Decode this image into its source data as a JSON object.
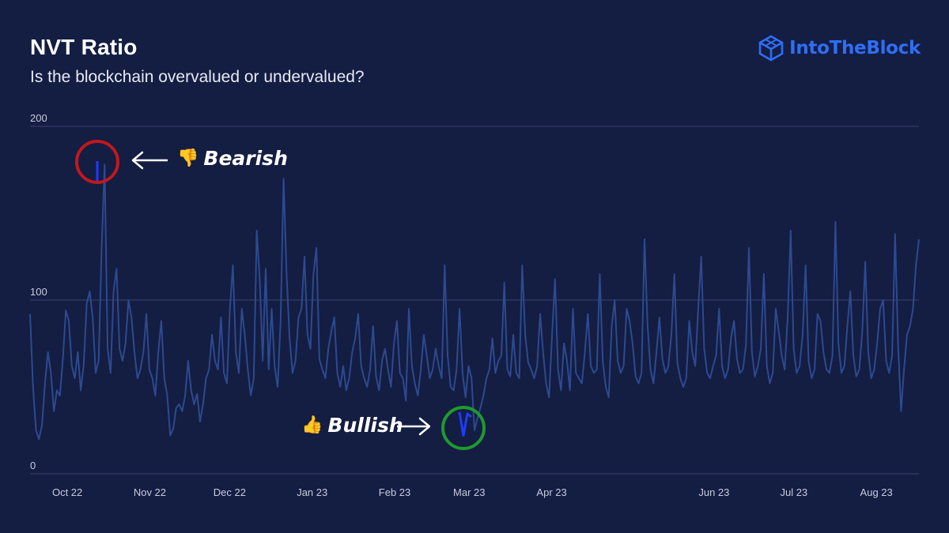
{
  "header": {
    "title": "NVT Ratio",
    "subtitle": "Is the blockchain overvalued or undervalued?"
  },
  "brand": {
    "name": "IntoTheBlock",
    "color": "#2f6ef5"
  },
  "annotations": {
    "bearish": {
      "label": "Bearish",
      "icon": "thumbs-down-icon",
      "ring_color": "#c0181f"
    },
    "bullish": {
      "label": "Bullish",
      "icon": "thumbs-up-icon",
      "ring_color": "#1f9a2e"
    }
  },
  "colors": {
    "background": "#141d42",
    "line": "#2c4a90",
    "highlight_line": "#1e3cff",
    "grid": "#3b4470",
    "text": "#ffffff",
    "tick_text": "#c9cde0"
  },
  "chart_data": {
    "type": "line",
    "title": "NVT Ratio",
    "subtitle": "Is the blockchain overvalued or undervalued?",
    "ylim": [
      0,
      200
    ],
    "yticks": [
      "0",
      "100",
      "200"
    ],
    "xlabels": [
      "Oct 22",
      "Nov 22",
      "Dec 22",
      "Jan 23",
      "Feb 23",
      "Mar 23",
      "Apr 23",
      "Jun 23",
      "Jul 23",
      "Aug 23"
    ],
    "x_start": "2022-10-01",
    "x_end": "2023-08-31",
    "grid": true,
    "series": [
      {
        "values": [
          92,
          50,
          25,
          20,
          28,
          52,
          70,
          58,
          36,
          48,
          45,
          66,
          94,
          88,
          62,
          55,
          70,
          48,
          63,
          98,
          105,
          90,
          58,
          65,
          130,
          178,
          72,
          58,
          105,
          118,
          72,
          65,
          75,
          100,
          90,
          70,
          55,
          60,
          70,
          92,
          60,
          55,
          45,
          70,
          88,
          55,
          45,
          22,
          26,
          38,
          40,
          36,
          45,
          65,
          48,
          40,
          46,
          30,
          40,
          55,
          60,
          80,
          65,
          60,
          90,
          58,
          52,
          95,
          120,
          70,
          58,
          95,
          80,
          60,
          45,
          55,
          140,
          112,
          65,
          118,
          60,
          95,
          62,
          50,
          88,
          170,
          115,
          78,
          58,
          65,
          90,
          95,
          125,
          80,
          72,
          115,
          130,
          66,
          60,
          55,
          72,
          82,
          90,
          58,
          50,
          62,
          48,
          55,
          70,
          78,
          92,
          62,
          55,
          50,
          60,
          85,
          56,
          48,
          65,
          72,
          60,
          50,
          75,
          88,
          58,
          55,
          42,
          95,
          62,
          52,
          45,
          60,
          80,
          68,
          55,
          60,
          72,
          62,
          55,
          120,
          68,
          50,
          48,
          60,
          95,
          58,
          44,
          62,
          55,
          25,
          32,
          38,
          45,
          55,
          60,
          78,
          58,
          65,
          68,
          110,
          60,
          56,
          80,
          58,
          55,
          120,
          80,
          64,
          60,
          55,
          62,
          92,
          70,
          52,
          44,
          80,
          112,
          60,
          48,
          75,
          65,
          48,
          95,
          58,
          55,
          52,
          70,
          92,
          62,
          58,
          60,
          115,
          65,
          50,
          44,
          85,
          100,
          65,
          58,
          62,
          95,
          88,
          75,
          56,
          52,
          58,
          135,
          86,
          60,
          52,
          70,
          90,
          66,
          58,
          62,
          80,
          115,
          64,
          55,
          50,
          55,
          88,
          70,
          62,
          95,
          125,
          72,
          58,
          55,
          62,
          68,
          95,
          62,
          55,
          60,
          78,
          88,
          66,
          58,
          60,
          74,
          130,
          70,
          56,
          62,
          72,
          115,
          62,
          52,
          58,
          95,
          82,
          68,
          60,
          90,
          140,
          72,
          58,
          62,
          80,
          120,
          65,
          55,
          60,
          92,
          88,
          70,
          60,
          58,
          68,
          145,
          75,
          58,
          62,
          85,
          105,
          68,
          56,
          60,
          82,
          122,
          70,
          55,
          60,
          75,
          95,
          100,
          65,
          58,
          68,
          138,
          75,
          36,
          60,
          80,
          85,
          95,
          120,
          135
        ]
      }
    ],
    "highlights": [
      {
        "label": "Bearish",
        "value": 180
      },
      {
        "label": "Bullish",
        "value": 22
      }
    ]
  }
}
